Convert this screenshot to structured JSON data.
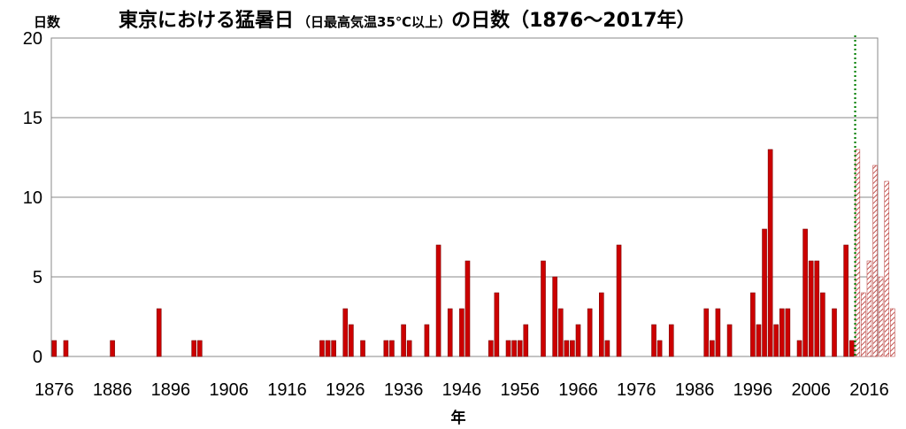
{
  "chart_data": {
    "type": "bar",
    "title_main_a": "東京における猛暑日",
    "title_sub": "（日最高気温35℃以上）",
    "title_main_b": "の日数（1876～2017年）",
    "ylabel": "日数",
    "xlabel": "年",
    "ylim": [
      0,
      20
    ],
    "yticks": [
      "0",
      "5",
      "10",
      "15",
      "20"
    ],
    "xticks": [
      "1876",
      "1886",
      "1896",
      "1906",
      "1916",
      "1926",
      "1936",
      "1946",
      "1956",
      "1966",
      "1976",
      "1986",
      "1996",
      "2006",
      "2016"
    ],
    "xrange": [
      1876,
      2017
    ],
    "grid": true,
    "bar_color": "#cc0000",
    "hatched_color": "#c0504d",
    "marker_line_color": "#008000",
    "marker_line_year": 2014,
    "hatched_from_year": 2014,
    "years": [
      1876,
      1878,
      1886,
      1894,
      1900,
      1901,
      1922,
      1923,
      1924,
      1926,
      1927,
      1929,
      1933,
      1934,
      1936,
      1937,
      1940,
      1942,
      1944,
      1946,
      1947,
      1951,
      1952,
      1954,
      1955,
      1956,
      1957,
      1960,
      1962,
      1963,
      1964,
      1965,
      1966,
      1968,
      1970,
      1971,
      1973,
      1979,
      1980,
      1982,
      1988,
      1989,
      1990,
      1992,
      1996,
      1997,
      1998,
      1999,
      2000,
      2001,
      2002,
      2004,
      2005,
      2006,
      2007,
      2008,
      2010,
      2012,
      2013,
      2014,
      2015,
      2016,
      2017,
      2018,
      2019,
      2020
    ],
    "values": [
      1,
      1,
      1,
      3,
      1,
      1,
      1,
      1,
      1,
      3,
      2,
      1,
      1,
      1,
      2,
      1,
      2,
      7,
      3,
      3,
      6,
      1,
      4,
      1,
      1,
      1,
      2,
      6,
      5,
      3,
      1,
      1,
      2,
      3,
      4,
      1,
      7,
      2,
      1,
      2,
      3,
      1,
      3,
      2,
      4,
      2,
      8,
      13,
      2,
      3,
      3,
      1,
      8,
      6,
      6,
      4,
      3,
      7,
      1,
      13,
      4,
      6,
      12,
      5,
      11,
      3
    ]
  }
}
